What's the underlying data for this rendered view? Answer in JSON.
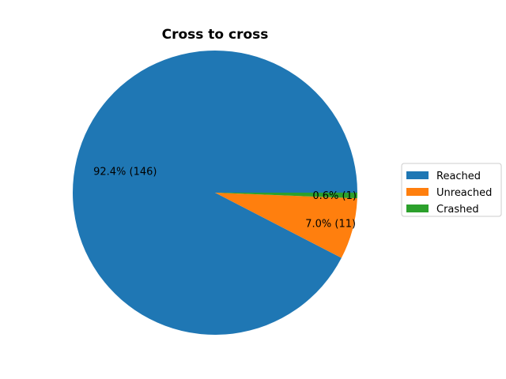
{
  "chart_data": {
    "type": "pie",
    "title": "Cross to cross",
    "legend_position": "right",
    "slices": [
      {
        "label": "Reached",
        "value": 146,
        "percent_label": "92.4%  (146)",
        "color": "#1f77b4"
      },
      {
        "label": "Unreached",
        "value": 11,
        "percent_label": "7.0%  (11)",
        "color": "#ff7f0e"
      },
      {
        "label": "Crashed",
        "value": 1,
        "percent_label": "0.6%  (1)",
        "color": "#2ca02c"
      }
    ],
    "start_angle_deg": 0,
    "direction": "counterclockwise"
  }
}
